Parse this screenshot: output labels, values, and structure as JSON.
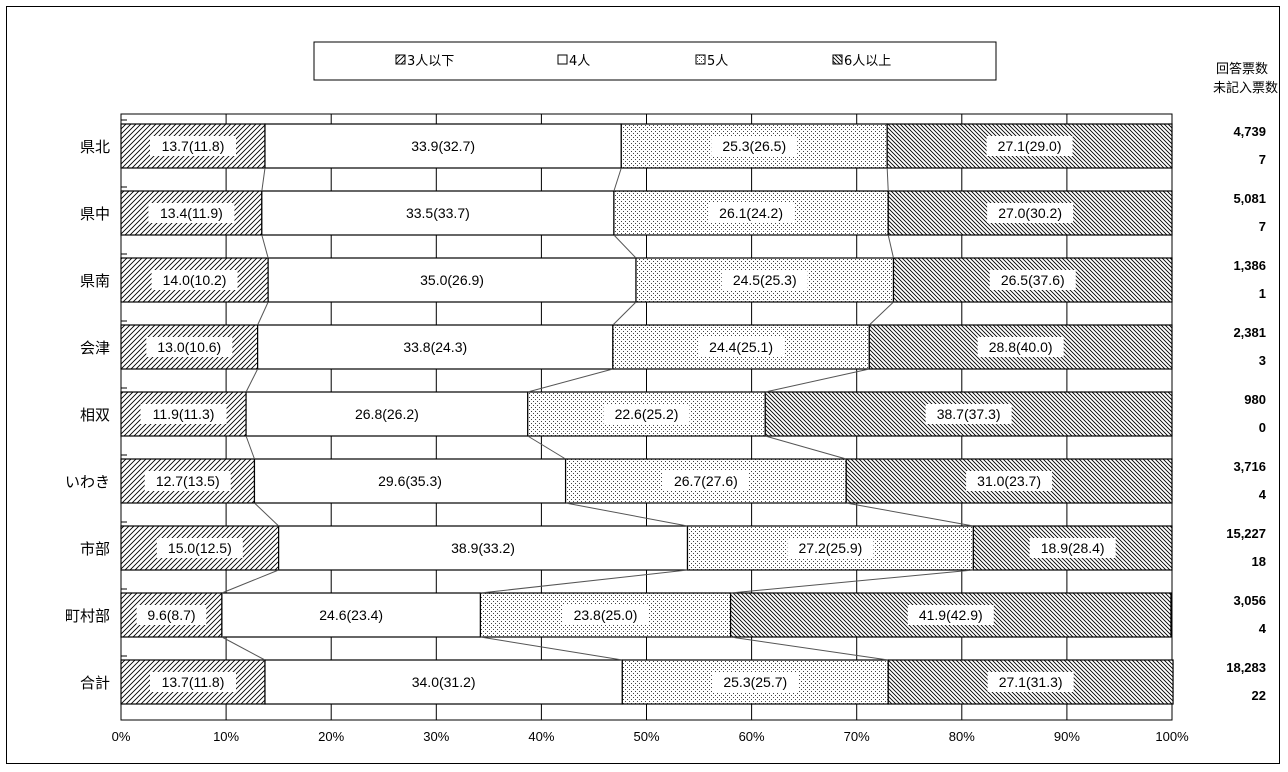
{
  "chart_data": {
    "type": "bar",
    "orientation": "horizontal",
    "stacked": true,
    "percent": true,
    "categories": [
      "県北",
      "県中",
      "県南",
      "会津",
      "相双",
      "いわき",
      "市部",
      "町村部",
      "合計"
    ],
    "series": [
      {
        "name": "3人以下",
        "values": [
          13.7,
          13.4,
          14.0,
          13.0,
          11.9,
          12.7,
          15.0,
          9.6,
          13.7
        ],
        "previous": [
          11.8,
          11.9,
          10.2,
          10.6,
          11.3,
          13.5,
          12.5,
          8.7,
          11.8
        ],
        "pattern": "diagonal-forward"
      },
      {
        "name": "4人",
        "values": [
          33.9,
          33.5,
          35.0,
          33.8,
          26.8,
          29.6,
          38.9,
          24.6,
          34.0
        ],
        "previous": [
          32.7,
          33.7,
          26.9,
          24.3,
          26.2,
          35.3,
          33.2,
          23.4,
          31.2
        ],
        "pattern": "blank"
      },
      {
        "name": "5人",
        "values": [
          25.3,
          26.1,
          24.5,
          24.4,
          22.6,
          26.7,
          27.2,
          23.8,
          25.3
        ],
        "previous": [
          26.5,
          24.2,
          25.3,
          25.1,
          25.2,
          27.6,
          25.9,
          25.0,
          25.7
        ],
        "pattern": "dots"
      },
      {
        "name": "6人以上",
        "values": [
          27.1,
          27.0,
          26.5,
          28.8,
          38.7,
          31.0,
          18.9,
          41.9,
          27.1
        ],
        "previous": [
          29.0,
          30.2,
          37.6,
          40.0,
          37.3,
          23.7,
          28.4,
          42.9,
          31.3
        ],
        "pattern": "diagonal-back"
      }
    ],
    "xlim": [
      0,
      100
    ],
    "x_ticks": [
      "0%",
      "10%",
      "20%",
      "30%",
      "40%",
      "50%",
      "60%",
      "70%",
      "80%",
      "90%",
      "100%"
    ],
    "legend_position": "top",
    "responses": [
      "4,739",
      "5,081",
      "1,386",
      "2,381",
      "980",
      "3,716",
      "15,227",
      "3,056",
      "18,283"
    ],
    "unanswered": [
      "7",
      "7",
      "1",
      "3",
      "0",
      "4",
      "18",
      "4",
      "22"
    ],
    "side_header": [
      "回答票数",
      "未記入票数"
    ]
  }
}
